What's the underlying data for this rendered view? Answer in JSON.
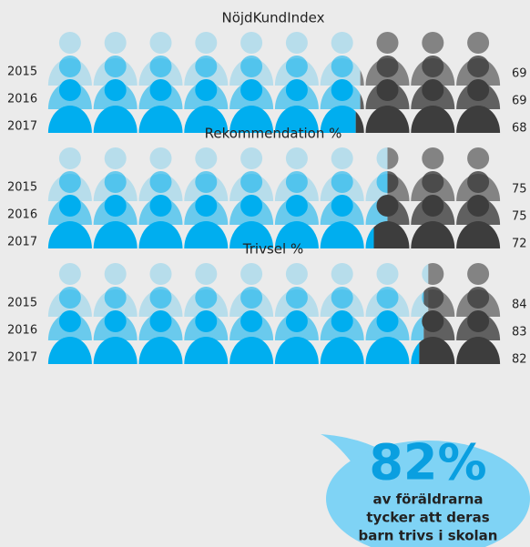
{
  "chart_data": [
    {
      "type": "pictogram",
      "title": "NöjdKundIndex",
      "categories": [
        "2015",
        "2016",
        "2017"
      ],
      "values": [
        69,
        69,
        68
      ],
      "xlim": [
        0,
        100
      ],
      "icons": 10,
      "color": "#00aeef",
      "rest_color": "#3d3d3d"
    },
    {
      "type": "pictogram",
      "title": "Rekommendation %",
      "categories": [
        "2015",
        "2016",
        "2017"
      ],
      "values": [
        75,
        75,
        72
      ],
      "xlim": [
        0,
        100
      ],
      "icons": 10,
      "color": "#00aeef",
      "rest_color": "#3d3d3d"
    },
    {
      "type": "pictogram",
      "title": "Trivsel %",
      "categories": [
        "2015",
        "2016",
        "2017"
      ],
      "values": [
        84,
        83,
        82
      ],
      "xlim": [
        0,
        100
      ],
      "icons": 10,
      "color": "#00aeef",
      "rest_color": "#3d3d3d"
    }
  ],
  "callout": {
    "value": 82,
    "label": "82%",
    "lines": [
      "av föräldrarna",
      "tycker att deras",
      "barn trivs i skolan"
    ]
  }
}
